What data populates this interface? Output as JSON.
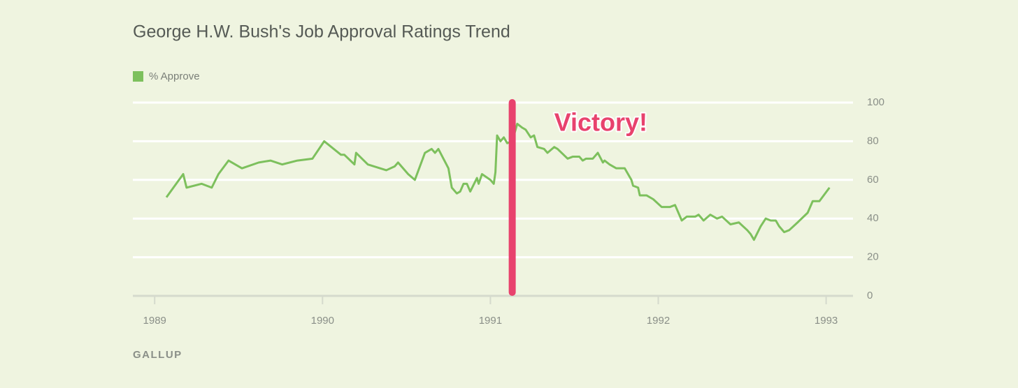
{
  "chart_data": {
    "type": "line",
    "title": "George H.W. Bush's Job Approval Ratings Trend",
    "source": "GALLUP",
    "legend": "top-left",
    "grid": true,
    "series": [
      {
        "name": "% Approve",
        "color": "#7dc05d",
        "x": [
          1989.07,
          1989.17,
          1989.19,
          1989.28,
          1989.34,
          1989.38,
          1989.44,
          1989.52,
          1989.62,
          1989.69,
          1989.76,
          1989.85,
          1989.94,
          1990.01,
          1990.11,
          1990.13,
          1990.19,
          1990.2,
          1990.27,
          1990.38,
          1990.43,
          1990.45,
          1990.51,
          1990.55,
          1990.61,
          1990.65,
          1990.67,
          1990.69,
          1990.75,
          1990.77,
          1990.8,
          1990.82,
          1990.84,
          1990.86,
          1990.88,
          1990.92,
          1990.93,
          1990.95,
          1991.0,
          1991.02,
          1991.03,
          1991.04,
          1991.06,
          1991.08,
          1991.1,
          1991.13,
          1991.16,
          1991.19,
          1991.21,
          1991.24,
          1991.26,
          1991.28,
          1991.32,
          1991.34,
          1991.38,
          1991.4,
          1991.46,
          1991.49,
          1991.53,
          1991.55,
          1991.57,
          1991.61,
          1991.64,
          1991.67,
          1991.68,
          1991.71,
          1991.75,
          1991.8,
          1991.84,
          1991.85,
          1991.88,
          1991.89,
          1991.93,
          1991.97,
          1992.02,
          1992.07,
          1992.1,
          1992.14,
          1992.17,
          1992.22,
          1992.24,
          1992.27,
          1992.31,
          1992.35,
          1992.38,
          1992.43,
          1992.48,
          1992.53,
          1992.55,
          1992.57,
          1992.61,
          1992.64,
          1992.67,
          1992.7,
          1992.72,
          1992.75,
          1992.78,
          1992.83,
          1992.89,
          1992.92,
          1992.96,
          1993.02
        ],
        "values": [
          51,
          63,
          56,
          58,
          56,
          63,
          70,
          66,
          69,
          70,
          68,
          70,
          71,
          80,
          73,
          73,
          68,
          74,
          68,
          65,
          67,
          69,
          63,
          60,
          74,
          76,
          74,
          76,
          66,
          56,
          53,
          54,
          58,
          58,
          54,
          61,
          58,
          63,
          60,
          58,
          64,
          83,
          80,
          82,
          79,
          80,
          89,
          87,
          86,
          82,
          83,
          77,
          76,
          74,
          77,
          76,
          71,
          72,
          72,
          70,
          71,
          71,
          74,
          69,
          70,
          68,
          66,
          66,
          60,
          57,
          56,
          52,
          52,
          50,
          46,
          46,
          47,
          39,
          41,
          41,
          42,
          39,
          42,
          40,
          41,
          37,
          38,
          34,
          32,
          29,
          36,
          40,
          39,
          39,
          36,
          33,
          34,
          38,
          43,
          49,
          49,
          56
        ]
      }
    ],
    "annotation": {
      "label": "Victory!",
      "x": 1991.13
    },
    "xlim": [
      1988.87,
      1993.16
    ],
    "xticks": [
      1989,
      1990,
      1991,
      1992,
      1993
    ],
    "ylim": [
      0,
      100
    ],
    "yticks": [
      0,
      20,
      40,
      60,
      80,
      100
    ]
  }
}
